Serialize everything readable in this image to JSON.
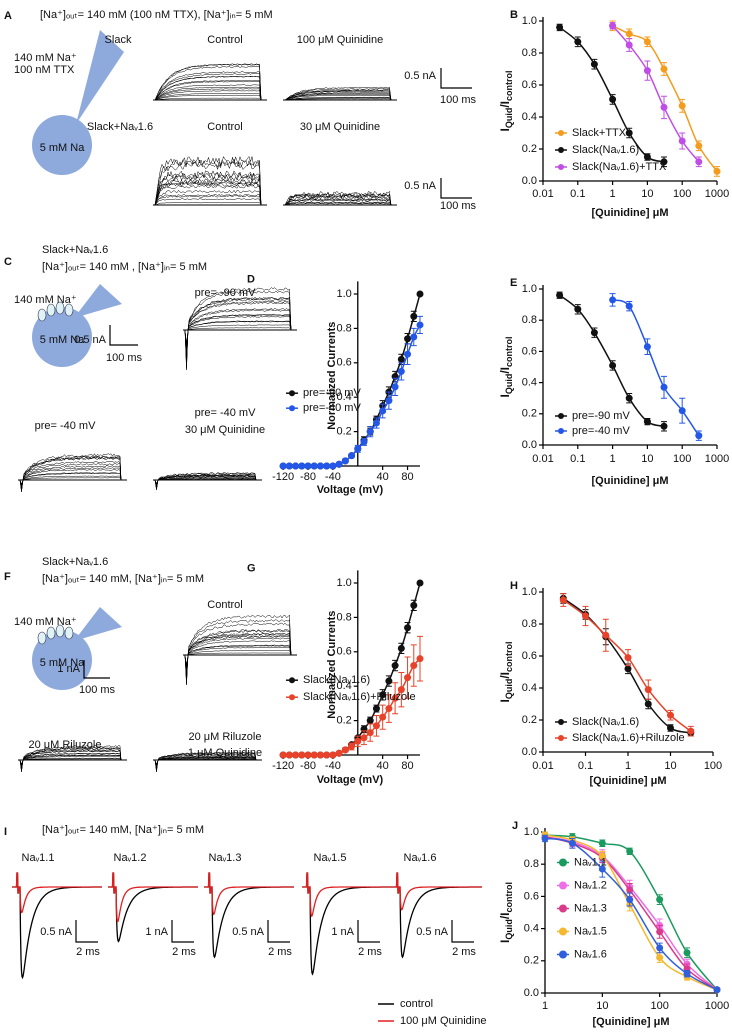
{
  "panels": [
    {
      "label": "A",
      "texts": [
        "[Na⁺]ₒᵤₜ= 140 mM (100 nM TTX), [Na⁺]ᵢₙ= 5 mM",
        "Slack",
        "Control",
        "100 μM Quinidine",
        "140 mM Na⁺",
        "100 nM TTX",
        "5 mM Na",
        "0.5 nA",
        "100 ms",
        "Slack+Naᵥ1.6",
        "Control",
        "30 μM Quinidine",
        "0.5 nA",
        "100 ms"
      ]
    },
    {
      "label": "C",
      "texts": [
        "Slack+Naᵥ1.6",
        "[Na⁺]ₒᵤₜ= 140 mM , [Na⁺]ᵢₙ= 5 mM",
        "140 mM Na⁺",
        "5 mM Na",
        "pre= -90 mV",
        "0.5 nA",
        "100 ms",
        "pre= -40 mV",
        "pre= -40 mV",
        "30 μM Quinidine"
      ]
    },
    {
      "label": "F",
      "texts": [
        "Slack+Naᵥ1.6",
        "[Na⁺]ₒᵤₜ= 140 mM, [Na⁺]ᵢₙ= 5 mM",
        "140 mM Na⁺",
        "5 mM Na",
        "Control",
        "1 nA",
        "100 ms",
        "20 μM Riluzole",
        "20 μM Riluzole",
        "1 μM Quinidine"
      ]
    },
    {
      "label": "I",
      "texts": [
        "[Na⁺]ₒᵤₜ= 140 mM, [Na⁺]ᵢₙ= 5 mM",
        "Naᵥ1.1",
        "0.5 nA",
        "2 ms",
        "Naᵥ1.2",
        "1 nA",
        "2 ms",
        "Naᵥ1.3",
        "0.5 nA",
        "2 ms",
        "Naᵥ1.5",
        "1 nA",
        "2 ms",
        "Naᵥ1.6",
        "0.5 nA",
        "2 ms",
        "control",
        "100 μM Quinidine"
      ]
    }
  ],
  "chart_data": [
    {
      "type": "line",
      "label": "B",
      "xscale": "log",
      "xlim": [
        0.01,
        1000
      ],
      "ylim": [
        0,
        1
      ],
      "xticks": [
        0.01,
        0.1,
        1,
        10,
        100,
        1000
      ],
      "yticks": [
        {
          "value": 0,
          "label": "0.0"
        },
        0.2,
        0.4,
        0.6,
        0.8,
        {
          "value": 1,
          "label": "1.0"
        }
      ],
      "xlabel": "[Quinidine] μM",
      "ylabel": [
        "I",
        "Quid",
        "/I",
        "control"
      ],
      "legend": "lower left",
      "series": [
        {
          "name": "Slack+TTX",
          "color": "#f39c1f",
          "x": [
            1,
            3,
            10,
            30,
            100,
            300,
            1000
          ],
          "values": [
            0.97,
            0.92,
            0.87,
            0.7,
            0.47,
            0.22,
            0.06
          ],
          "errors": [
            0.03,
            0.03,
            0.03,
            0.04,
            0.04,
            0.03,
            0.03
          ]
        },
        {
          "name": "Slack(Naᵥ1.6)",
          "color": "#111111",
          "x": [
            0.03,
            0.1,
            0.3,
            1,
            3,
            10,
            30
          ],
          "values": [
            0.96,
            0.87,
            0.73,
            0.51,
            0.3,
            0.15,
            0.12
          ],
          "errors": [
            0.02,
            0.03,
            0.03,
            0.03,
            0.03,
            0.02,
            0.03
          ]
        },
        {
          "name": "Slack(Naᵥ1.6)+TTX",
          "color": "#c04ee6",
          "x": [
            1,
            3,
            10,
            30,
            100,
            300
          ],
          "values": [
            0.97,
            0.85,
            0.69,
            0.46,
            0.25,
            0.12
          ],
          "errors": [
            0.02,
            0.04,
            0.06,
            0.07,
            0.05,
            0.03
          ]
        }
      ]
    },
    {
      "type": "line",
      "label": "D",
      "xscale": "linear",
      "xlim": [
        -125,
        100
      ],
      "ylim": [
        0,
        1.05
      ],
      "xticks": [
        -120,
        -80,
        -40,
        40,
        80
      ],
      "yticks": [
        0.2,
        0.4,
        0.6,
        0.8,
        {
          "value": 1,
          "label": "1.0"
        }
      ],
      "xlabel": "Voltage (mV)",
      "ylabel": "Normalized Currents",
      "legend": "center left",
      "series": [
        {
          "name": "pre=-90 mV",
          "color": "#111111",
          "x": [
            -120,
            -110,
            -100,
            -90,
            -80,
            -70,
            -60,
            -50,
            -40,
            -30,
            -20,
            -10,
            0,
            10,
            20,
            30,
            40,
            50,
            60,
            70,
            80,
            90,
            100
          ],
          "values": [
            0,
            0,
            0,
            0,
            0,
            0,
            0,
            0,
            0,
            0.01,
            0.03,
            0.06,
            0.1,
            0.15,
            0.2,
            0.27,
            0.35,
            0.43,
            0.52,
            0.62,
            0.74,
            0.87,
            1.0
          ],
          "errors": [
            0,
            0,
            0,
            0,
            0,
            0,
            0,
            0,
            0,
            0,
            0.01,
            0.01,
            0.01,
            0.02,
            0.02,
            0.02,
            0.03,
            0.03,
            0.03,
            0.03,
            0.03,
            0.03,
            0
          ]
        },
        {
          "name": "pre=-40 mV",
          "color": "#2457e8",
          "x": [
            -120,
            -110,
            -100,
            -90,
            -80,
            -70,
            -60,
            -50,
            -40,
            -30,
            -20,
            -10,
            0,
            10,
            20,
            30,
            40,
            50,
            60,
            70,
            80,
            90,
            100
          ],
          "values": [
            0,
            0,
            0,
            0,
            0,
            0,
            0,
            0,
            0,
            0.01,
            0.03,
            0.06,
            0.1,
            0.14,
            0.2,
            0.25,
            0.32,
            0.38,
            0.46,
            0.55,
            0.65,
            0.75,
            0.82
          ],
          "errors": [
            0,
            0,
            0,
            0,
            0,
            0,
            0,
            0,
            0,
            0,
            0.01,
            0.01,
            0.02,
            0.02,
            0.03,
            0.03,
            0.04,
            0.05,
            0.05,
            0.05,
            0.06,
            0.05,
            0.05
          ]
        }
      ]
    },
    {
      "type": "line",
      "label": "E",
      "xscale": "log",
      "xlim": [
        0.01,
        1000
      ],
      "ylim": [
        0,
        1
      ],
      "xticks": [
        0.01,
        0.1,
        1,
        10,
        100,
        1000
      ],
      "yticks": [
        {
          "value": 0,
          "label": "0.0"
        },
        0.2,
        0.4,
        0.6,
        0.8,
        {
          "value": 1,
          "label": "1.0"
        }
      ],
      "xlabel": "[Quinidine] μM",
      "ylabel": [
        "I",
        "Quid",
        "/I",
        "control"
      ],
      "legend": "lower left",
      "series": [
        {
          "name": "pre=-90 mV",
          "color": "#111111",
          "x": [
            0.03,
            0.1,
            0.3,
            1,
            3,
            10,
            30
          ],
          "values": [
            0.96,
            0.87,
            0.72,
            0.51,
            0.3,
            0.15,
            0.12
          ],
          "errors": [
            0.02,
            0.03,
            0.03,
            0.03,
            0.03,
            0.02,
            0.03
          ]
        },
        {
          "name": "pre=-40 mV",
          "color": "#2457e8",
          "x": [
            1,
            3,
            10,
            30,
            100,
            300
          ],
          "values": [
            0.93,
            0.89,
            0.63,
            0.37,
            0.22,
            0.06
          ],
          "errors": [
            0.04,
            0.03,
            0.05,
            0.07,
            0.08,
            0.03
          ]
        }
      ]
    },
    {
      "type": "line",
      "label": "G",
      "xscale": "linear",
      "xlim": [
        -125,
        100
      ],
      "ylim": [
        0,
        1.05
      ],
      "xticks": [
        -120,
        -80,
        -40,
        40,
        80
      ],
      "yticks": [
        0.2,
        0.4,
        0.6,
        0.8,
        {
          "value": 1,
          "label": "1.0"
        }
      ],
      "xlabel": "Voltage (mV)",
      "ylabel": "Normalized Currents",
      "legend": "center left",
      "series": [
        {
          "name": "Slack(Naᵥ1.6)",
          "color": "#111111",
          "x": [
            -120,
            -110,
            -100,
            -90,
            -80,
            -70,
            -60,
            -50,
            -40,
            -30,
            -20,
            -10,
            0,
            10,
            20,
            30,
            40,
            50,
            60,
            70,
            80,
            90,
            100
          ],
          "values": [
            0,
            0,
            0,
            0,
            0,
            0,
            0,
            0,
            0,
            0.01,
            0.03,
            0.06,
            0.1,
            0.15,
            0.2,
            0.27,
            0.35,
            0.43,
            0.52,
            0.62,
            0.74,
            0.87,
            1.0
          ],
          "errors": [
            0,
            0,
            0,
            0,
            0,
            0,
            0,
            0,
            0,
            0,
            0.01,
            0.01,
            0.01,
            0.02,
            0.02,
            0.02,
            0.03,
            0.03,
            0.03,
            0.03,
            0.03,
            0.03,
            0
          ]
        },
        {
          "name": "Slack(Naᵥ1.6)+Riluzole",
          "color": "#e8432a",
          "x": [
            -120,
            -110,
            -100,
            -90,
            -80,
            -70,
            -60,
            -50,
            -40,
            -30,
            -20,
            -10,
            0,
            10,
            20,
            30,
            40,
            50,
            60,
            70,
            80,
            90,
            100
          ],
          "values": [
            0,
            0,
            0,
            0,
            0,
            0,
            0,
            0,
            0,
            0.01,
            0.03,
            0.05,
            0.08,
            0.1,
            0.13,
            0.17,
            0.22,
            0.27,
            0.33,
            0.38,
            0.45,
            0.52,
            0.56
          ],
          "errors": [
            0,
            0,
            0,
            0,
            0,
            0,
            0,
            0,
            0,
            0,
            0.01,
            0.02,
            0.03,
            0.04,
            0.05,
            0.06,
            0.07,
            0.08,
            0.09,
            0.1,
            0.12,
            0.12,
            0.13
          ]
        }
      ]
    },
    {
      "type": "line",
      "label": "H",
      "xscale": "log",
      "xlim": [
        0.01,
        100
      ],
      "ylim": [
        0,
        1
      ],
      "xticks": [
        0.01,
        0.1,
        1,
        10,
        100
      ],
      "yticks": [
        {
          "value": 0,
          "label": "0.0"
        },
        0.2,
        0.4,
        0.6,
        0.8,
        {
          "value": 1,
          "label": "1.0"
        }
      ],
      "xlabel": "[Quinidine] μM",
      "ylabel": [
        "I",
        "Quid",
        "/I",
        "control"
      ],
      "legend": "lower left",
      "series": [
        {
          "name": "Slack(Naᵥ1.6)",
          "color": "#111111",
          "x": [
            0.03,
            0.1,
            0.3,
            1,
            3,
            10,
            30
          ],
          "values": [
            0.96,
            0.86,
            0.72,
            0.52,
            0.3,
            0.15,
            0.12
          ],
          "errors": [
            0.03,
            0.03,
            0.05,
            0.03,
            0.03,
            0.02,
            0.02
          ]
        },
        {
          "name": "Slack(Naᵥ1.6)+Riluzole",
          "color": "#e8432a",
          "x": [
            0.03,
            0.1,
            0.3,
            1,
            3,
            10,
            30
          ],
          "values": [
            0.95,
            0.85,
            0.73,
            0.59,
            0.39,
            0.23,
            0.13
          ],
          "errors": [
            0.04,
            0.06,
            0.1,
            0.05,
            0.06,
            0.03,
            0.03
          ]
        }
      ]
    },
    {
      "type": "line",
      "label": "J",
      "xscale": "log",
      "xlim": [
        1,
        1000
      ],
      "ylim": [
        0,
        1
      ],
      "xticks": [
        1,
        10,
        100,
        1000
      ],
      "yticks": [
        {
          "value": 0,
          "label": "0.0"
        },
        0.2,
        0.4,
        0.6,
        0.8,
        {
          "value": 1,
          "label": "1.0"
        }
      ],
      "xlabel": "[Quinidine] μM",
      "ylabel": [
        "I",
        "Quid",
        "/I",
        "control"
      ],
      "legend": "center left",
      "series": [
        {
          "name": "Naᵥ1.1",
          "color": "#1a9a5e",
          "x": [
            1,
            3,
            10,
            30,
            100,
            300,
            1000
          ],
          "values": [
            0.98,
            0.97,
            0.93,
            0.88,
            0.58,
            0.25,
            0.02
          ],
          "errors": [
            0.02,
            0.02,
            0.02,
            0.02,
            0.03,
            0.03,
            0.01
          ]
        },
        {
          "name": "Naᵥ1.2",
          "color": "#ee6ee8",
          "x": [
            1,
            3,
            10,
            30,
            100,
            300,
            1000
          ],
          "values": [
            0.97,
            0.94,
            0.85,
            0.66,
            0.42,
            0.18,
            0.02
          ],
          "errors": [
            0.02,
            0.03,
            0.04,
            0.04,
            0.04,
            0.03,
            0.01
          ]
        },
        {
          "name": "Naᵥ1.3",
          "color": "#d93a8a",
          "x": [
            1,
            3,
            10,
            30,
            100,
            300,
            1000
          ],
          "values": [
            0.97,
            0.93,
            0.84,
            0.64,
            0.38,
            0.15,
            0.02
          ],
          "errors": [
            0.02,
            0.03,
            0.03,
            0.04,
            0.04,
            0.03,
            0.01
          ]
        },
        {
          "name": "Naᵥ1.5",
          "color": "#f5b82e",
          "x": [
            1,
            3,
            10,
            30,
            100,
            300,
            1000
          ],
          "values": [
            0.98,
            0.95,
            0.85,
            0.55,
            0.22,
            0.1,
            0.02
          ],
          "errors": [
            0.02,
            0.02,
            0.03,
            0.04,
            0.03,
            0.02,
            0.01
          ]
        },
        {
          "name": "Naᵥ1.6",
          "color": "#2f5fdc",
          "x": [
            1,
            3,
            10,
            30,
            100,
            300,
            1000
          ],
          "values": [
            0.96,
            0.93,
            0.77,
            0.58,
            0.28,
            0.12,
            0.02
          ],
          "errors": [
            0.02,
            0.03,
            0.05,
            0.04,
            0.03,
            0.02,
            0.01
          ]
        }
      ]
    }
  ]
}
